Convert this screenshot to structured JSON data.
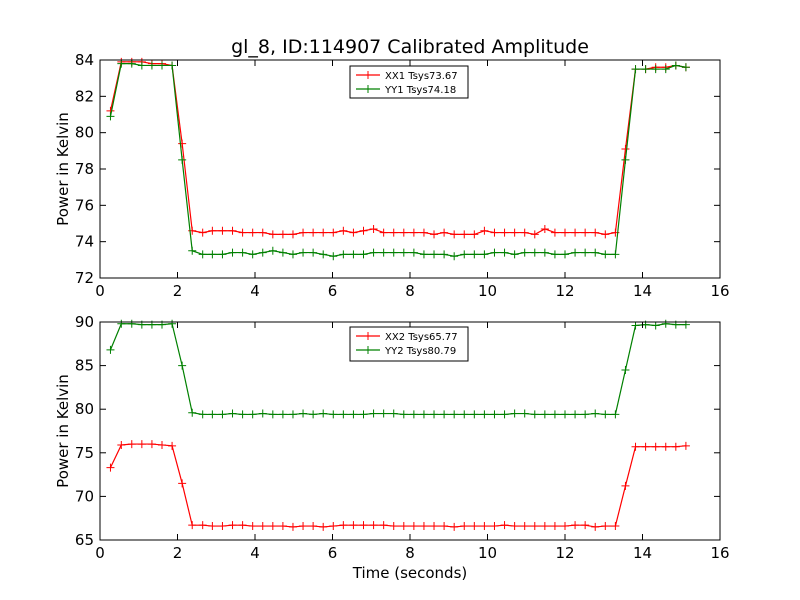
{
  "figure": {
    "title": "gl_8, ID:114907 Calibrated Amplitude",
    "xlabel": "Time (seconds)"
  },
  "chart_data": [
    {
      "type": "line",
      "title": "gl_8, ID:114907 Calibrated Amplitude",
      "xlabel": "",
      "ylabel": "Power in Kelvin",
      "xlim": [
        0,
        16
      ],
      "ylim": [
        72,
        84
      ],
      "xticks": [
        0,
        2,
        4,
        6,
        8,
        10,
        12,
        14,
        16
      ],
      "yticks": [
        72,
        74,
        76,
        78,
        80,
        82,
        84
      ],
      "grid": false,
      "legend": "top-center",
      "x": [
        0.27,
        0.55,
        0.82,
        1.08,
        1.34,
        1.6,
        1.86,
        2.12,
        2.38,
        2.65,
        2.9,
        3.16,
        3.42,
        3.68,
        3.94,
        4.2,
        4.46,
        4.72,
        4.98,
        5.24,
        5.5,
        5.76,
        6.02,
        6.28,
        6.54,
        6.8,
        7.06,
        7.32,
        7.58,
        7.84,
        8.1,
        8.36,
        8.62,
        8.88,
        9.14,
        9.4,
        9.66,
        9.92,
        10.18,
        10.44,
        10.7,
        10.96,
        11.22,
        11.48,
        11.74,
        12.0,
        12.26,
        12.52,
        12.78,
        13.04,
        13.3,
        13.56,
        13.82,
        14.08,
        14.34,
        14.6,
        14.86,
        15.12
      ],
      "series": [
        {
          "name": "XX1 Tsys73.67",
          "color": "#ff0000",
          "values": [
            81.2,
            83.9,
            83.9,
            83.9,
            83.8,
            83.8,
            83.7,
            79.4,
            74.6,
            74.5,
            74.6,
            74.6,
            74.6,
            74.5,
            74.5,
            74.5,
            74.4,
            74.4,
            74.4,
            74.5,
            74.5,
            74.5,
            74.5,
            74.6,
            74.5,
            74.6,
            74.7,
            74.5,
            74.5,
            74.5,
            74.5,
            74.5,
            74.4,
            74.5,
            74.4,
            74.4,
            74.4,
            74.6,
            74.5,
            74.5,
            74.5,
            74.5,
            74.4,
            74.7,
            74.5,
            74.5,
            74.5,
            74.5,
            74.5,
            74.4,
            74.5,
            79.1,
            83.5,
            83.5,
            83.6,
            83.6,
            83.7,
            83.6
          ]
        },
        {
          "name": "YY1 Tsys74.18",
          "color": "#008000",
          "values": [
            80.9,
            83.8,
            83.8,
            83.7,
            83.7,
            83.7,
            83.7,
            78.5,
            73.5,
            73.3,
            73.3,
            73.3,
            73.4,
            73.4,
            73.3,
            73.4,
            73.5,
            73.4,
            73.3,
            73.4,
            73.4,
            73.3,
            73.2,
            73.3,
            73.3,
            73.3,
            73.4,
            73.4,
            73.4,
            73.4,
            73.4,
            73.3,
            73.3,
            73.3,
            73.2,
            73.3,
            73.3,
            73.3,
            73.4,
            73.4,
            73.3,
            73.4,
            73.4,
            73.4,
            73.3,
            73.3,
            73.4,
            73.4,
            73.4,
            73.3,
            73.3,
            78.5,
            83.5,
            83.5,
            83.5,
            83.5,
            83.7,
            83.6
          ]
        }
      ]
    },
    {
      "type": "line",
      "title": "",
      "xlabel": "Time (seconds)",
      "ylabel": "Power in Kelvin",
      "xlim": [
        0,
        16
      ],
      "ylim": [
        65,
        90
      ],
      "xticks": [
        0,
        2,
        4,
        6,
        8,
        10,
        12,
        14,
        16
      ],
      "yticks": [
        65,
        70,
        75,
        80,
        85,
        90
      ],
      "grid": false,
      "legend": "top-center",
      "x": [
        0.27,
        0.55,
        0.82,
        1.08,
        1.34,
        1.6,
        1.86,
        2.12,
        2.38,
        2.65,
        2.9,
        3.16,
        3.42,
        3.68,
        3.94,
        4.2,
        4.46,
        4.72,
        4.98,
        5.24,
        5.5,
        5.76,
        6.02,
        6.28,
        6.54,
        6.8,
        7.06,
        7.32,
        7.58,
        7.84,
        8.1,
        8.36,
        8.62,
        8.88,
        9.14,
        9.4,
        9.66,
        9.92,
        10.18,
        10.44,
        10.7,
        10.96,
        11.22,
        11.48,
        11.74,
        12.0,
        12.26,
        12.52,
        12.78,
        13.04,
        13.3,
        13.56,
        13.82,
        14.08,
        14.34,
        14.6,
        14.86,
        15.12
      ],
      "series": [
        {
          "name": "XX2 Tsys65.77",
          "color": "#ff0000",
          "values": [
            73.3,
            75.9,
            76.0,
            76.0,
            76.0,
            75.9,
            75.8,
            71.5,
            66.7,
            66.7,
            66.6,
            66.6,
            66.7,
            66.7,
            66.6,
            66.6,
            66.6,
            66.6,
            66.5,
            66.6,
            66.6,
            66.5,
            66.6,
            66.7,
            66.7,
            66.7,
            66.7,
            66.7,
            66.6,
            66.6,
            66.6,
            66.6,
            66.6,
            66.6,
            66.5,
            66.6,
            66.6,
            66.6,
            66.6,
            66.7,
            66.6,
            66.6,
            66.6,
            66.6,
            66.6,
            66.6,
            66.7,
            66.7,
            66.5,
            66.6,
            66.6,
            71.2,
            75.7,
            75.7,
            75.7,
            75.7,
            75.7,
            75.8
          ]
        },
        {
          "name": "YY2 Tsys80.79",
          "color": "#008000",
          "values": [
            86.8,
            89.8,
            89.8,
            89.7,
            89.7,
            89.7,
            89.8,
            85.0,
            79.6,
            79.4,
            79.4,
            79.4,
            79.5,
            79.4,
            79.4,
            79.5,
            79.4,
            79.4,
            79.4,
            79.5,
            79.4,
            79.5,
            79.4,
            79.4,
            79.4,
            79.4,
            79.5,
            79.5,
            79.5,
            79.4,
            79.4,
            79.4,
            79.4,
            79.4,
            79.4,
            79.4,
            79.4,
            79.4,
            79.4,
            79.4,
            79.5,
            79.5,
            79.4,
            79.4,
            79.4,
            79.4,
            79.4,
            79.4,
            79.5,
            79.4,
            79.4,
            84.5,
            89.6,
            89.7,
            89.6,
            89.8,
            89.7,
            89.7
          ]
        }
      ]
    }
  ]
}
